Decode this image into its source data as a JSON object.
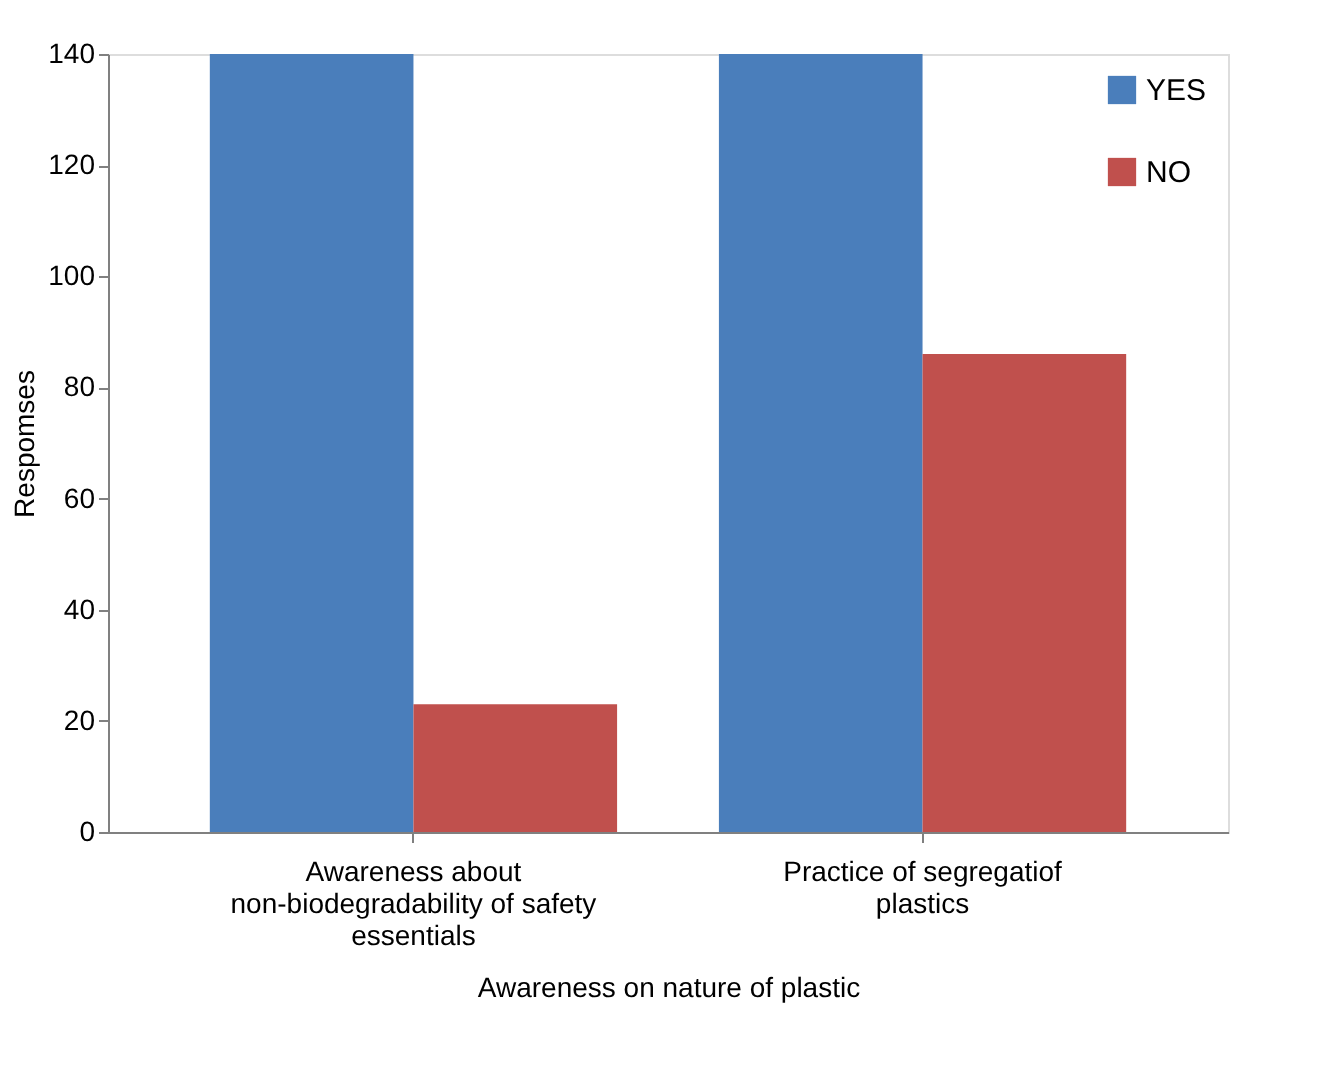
{
  "chart_data": {
    "type": "bar",
    "xlabel": "Awareness on nature of plastic",
    "ylabel": "Respomses",
    "categories": [
      "Awareness about non-biodegradability of safety essentials",
      "Practice of segregatiof plastics"
    ],
    "series": [
      {
        "name": "YES",
        "color": "#4a7ebb",
        "values": [
          140,
          140
        ]
      },
      {
        "name": "NO",
        "color": "#c0504d",
        "values": [
          23,
          86
        ]
      }
    ],
    "ylim": [
      0,
      140
    ],
    "yticks": [
      0,
      20,
      40,
      60,
      80,
      100,
      120,
      140
    ],
    "grid": false,
    "legend": "top right"
  }
}
